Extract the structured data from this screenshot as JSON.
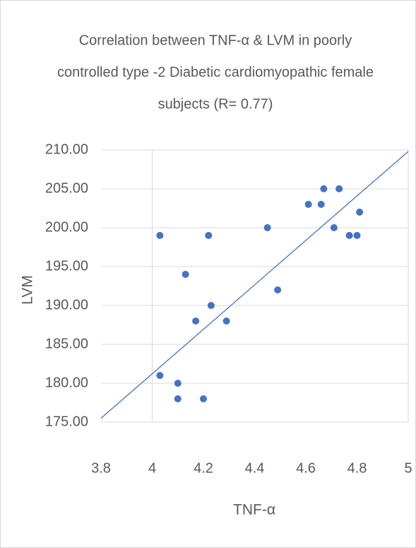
{
  "chart_data": {
    "type": "scatter",
    "title": [
      "Correlation between  TNF-α & LVM in poorly",
      "controlled type -2  Diabetic cardiomyopathic female",
      "subjects (R= 0.77)"
    ],
    "x_label": "TNF-α",
    "y_label": "LVM",
    "series": [
      {
        "color": "#4472c4",
        "x": [
          4.03,
          4.22,
          4.13,
          4.17,
          4.23,
          4.29,
          4.03,
          4.1,
          4.1,
          4.2,
          4.45,
          4.49,
          4.61,
          4.66,
          4.67,
          4.73,
          4.71,
          4.77,
          4.8,
          4.81
        ],
        "values": [
          199,
          199,
          194,
          188,
          190,
          188,
          181,
          180,
          178,
          178,
          200,
          192,
          203,
          203,
          205,
          205,
          200,
          199,
          199,
          202
        ]
      }
    ],
    "trendline": {
      "color": "#4472c4",
      "x": [
        3.8,
        5
      ],
      "values": [
        175.5,
        209.8
      ]
    },
    "xlim": [
      3.8,
      5
    ],
    "xticks": [
      3.8,
      4,
      4.2,
      4.4,
      4.6,
      4.8,
      5
    ],
    "ylim": [
      175,
      210
    ],
    "yticks": [
      {
        "value": 175,
        "label": "175.00"
      },
      {
        "value": 180,
        "label": "180.00"
      },
      {
        "value": 185,
        "label": "185.00"
      },
      {
        "value": 190,
        "label": "190.00"
      },
      {
        "value": 195,
        "label": "195.00"
      },
      {
        "value": 200,
        "label": "200.00"
      },
      {
        "value": 205,
        "label": "205.00"
      },
      {
        "value": 210,
        "label": "210.00"
      }
    ],
    "grid": true
  }
}
